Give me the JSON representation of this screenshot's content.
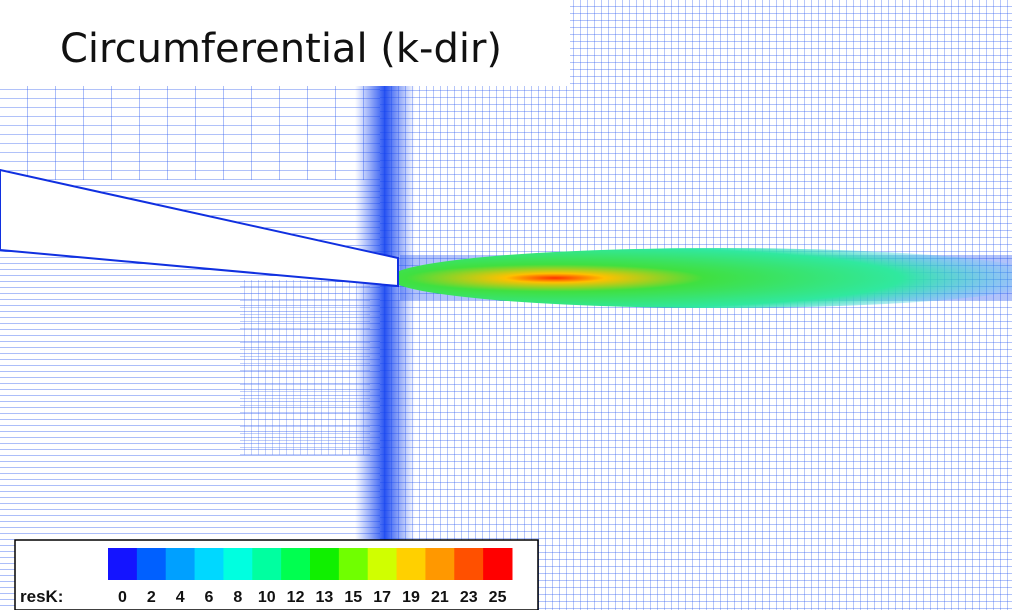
{
  "header": {
    "title": "Circumferential (k-dir)"
  },
  "legend": {
    "label": "resK:",
    "ticks": [
      "0",
      "2",
      "4",
      "6",
      "8",
      "10",
      "12",
      "13",
      "15",
      "17",
      "19",
      "21",
      "23",
      "25"
    ],
    "colors": [
      "#1414ff",
      "#0060ff",
      "#00a0ff",
      "#00d8ff",
      "#00ffe0",
      "#00ffa0",
      "#00ff50",
      "#10f000",
      "#70ff00",
      "#d0ff00",
      "#ffd000",
      "#ff9800",
      "#ff5000",
      "#ff0000"
    ]
  }
}
